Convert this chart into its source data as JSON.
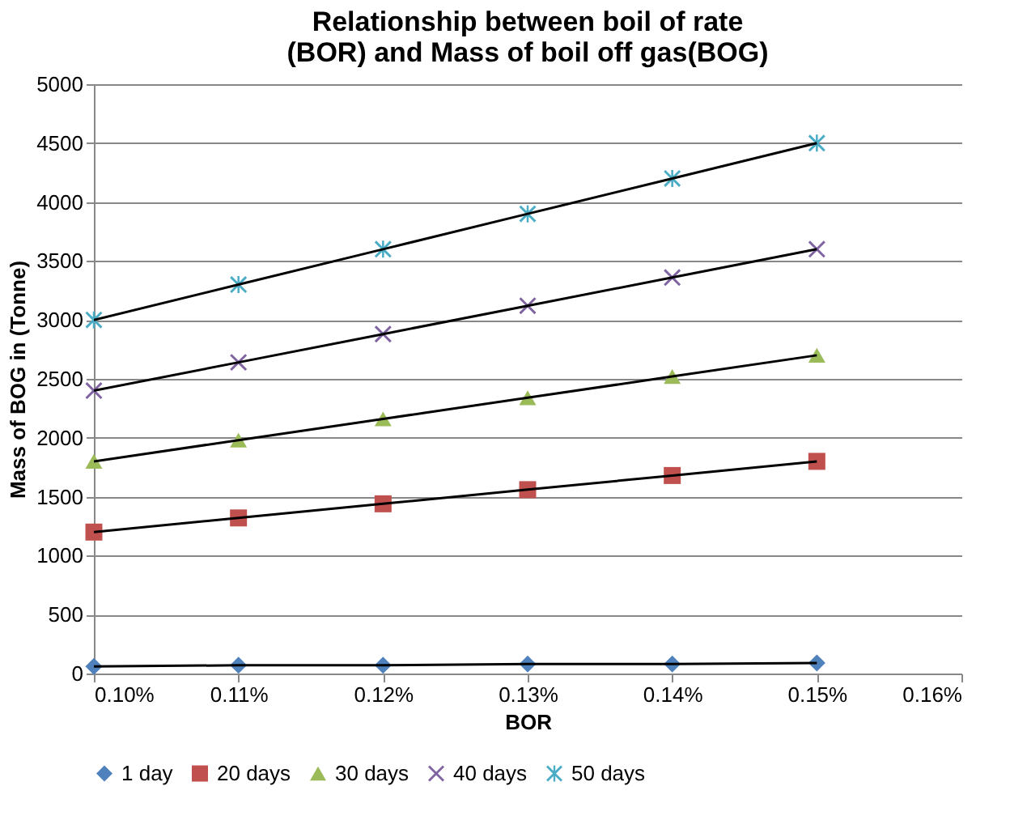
{
  "chart_data": {
    "type": "scatter",
    "title": "Relationship between boil of rate (BOR) and Mass of boil off gas(BOG)",
    "xlabel": "BOR",
    "ylabel": "Mass of BOG in (Tonne)",
    "x": [
      0.1,
      0.11,
      0.12,
      0.13,
      0.14,
      0.15
    ],
    "xlim": [
      0.1,
      0.16
    ],
    "xticks": [
      {
        "value": 0.1,
        "label": "0.10%"
      },
      {
        "value": 0.11,
        "label": "0.11%"
      },
      {
        "value": 0.12,
        "label": "0.12%"
      },
      {
        "value": 0.13,
        "label": "0.13%"
      },
      {
        "value": 0.14,
        "label": "0.14%"
      },
      {
        "value": 0.15,
        "label": "0.15%"
      },
      {
        "value": 0.16,
        "label": "0.16%"
      }
    ],
    "ylim": [
      0,
      5000
    ],
    "yticks": [
      0,
      500,
      1000,
      1500,
      2000,
      2500,
      3000,
      3500,
      4000,
      4500,
      5000
    ],
    "grid": "y",
    "legend": "bottom",
    "line_style": "solid",
    "series": [
      {
        "name": "1 day",
        "color": "#4f81bd",
        "marker": "diamond",
        "values": [
          60,
          70,
          70,
          80,
          80,
          90
        ]
      },
      {
        "name": "20 days",
        "color": "#c0504d",
        "marker": "square",
        "values": [
          1200,
          1320,
          1440,
          1560,
          1680,
          1800
        ]
      },
      {
        "name": "30 days",
        "color": "#9bbb59",
        "marker": "triangle",
        "values": [
          1800,
          1980,
          2160,
          2340,
          2520,
          2700
        ]
      },
      {
        "name": "40 days",
        "color": "#8064a2",
        "marker": "cross",
        "values": [
          2400,
          2640,
          2880,
          3120,
          3360,
          3600
        ]
      },
      {
        "name": "50 days",
        "color": "#4bacc6",
        "marker": "star",
        "values": [
          3000,
          3300,
          3600,
          3900,
          4200,
          4500
        ]
      },
      {
        "type": "line",
        "color": "#000000",
        "values": [
          60,
          70,
          70,
          80,
          80,
          90
        ]
      },
      {
        "type": "line",
        "color": "#000000",
        "values": [
          1200,
          1320,
          1440,
          1560,
          1680,
          1800
        ]
      },
      {
        "type": "line",
        "color": "#000000",
        "values": [
          1800,
          1980,
          2160,
          2340,
          2520,
          2700
        ]
      },
      {
        "type": "line",
        "color": "#000000",
        "values": [
          2400,
          2640,
          2880,
          3120,
          3360,
          3600
        ]
      },
      {
        "type": "line",
        "color": "#000000",
        "values": [
          3000,
          3300,
          3600,
          3900,
          4200,
          4500
        ]
      }
    ]
  }
}
